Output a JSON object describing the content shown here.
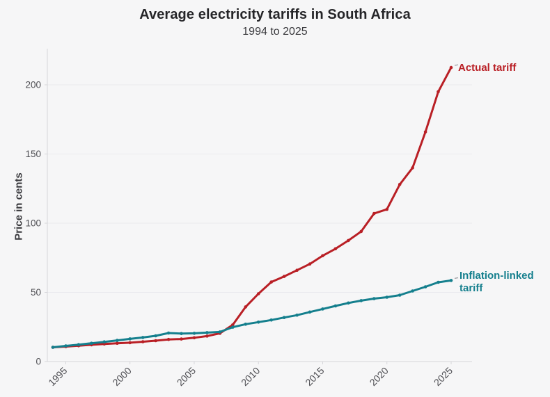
{
  "chart_data": {
    "type": "line",
    "title": "Average electricity tariffs in South Africa",
    "subtitle": "1994 to 2025",
    "ylabel": "Price in cents",
    "xlabel": "",
    "x_ticks": [
      1995,
      2000,
      2005,
      2010,
      2015,
      2020,
      2025
    ],
    "y_ticks": [
      0,
      50,
      100,
      150,
      200
    ],
    "ylim": [
      0,
      215
    ],
    "xlim": [
      1994,
      2025
    ],
    "grid": "horizontal",
    "legend_position": "end-of-line-labels",
    "background_color": "#f6f6f7",
    "grid_color": "#eaeaee",
    "axis_color": "#d6d6da",
    "tick_label_color": "#4e4e53",
    "x": [
      1994,
      1995,
      1996,
      1997,
      1998,
      1999,
      2000,
      2001,
      2002,
      2003,
      2004,
      2005,
      2006,
      2007,
      2008,
      2009,
      2010,
      2011,
      2012,
      2013,
      2014,
      2015,
      2016,
      2017,
      2018,
      2019,
      2020,
      2021,
      2022,
      2023,
      2024,
      2025
    ],
    "series": [
      {
        "name": "Actual tariff",
        "color": "#b91f25",
        "values": [
          10.3,
          10.8,
          11.4,
          12.1,
          12.7,
          13.2,
          13.6,
          14.3,
          15.1,
          16.0,
          16.3,
          17.2,
          18.4,
          20.4,
          26.5,
          39.5,
          49.0,
          57.5,
          61.5,
          66.0,
          70.5,
          76.5,
          81.5,
          87.5,
          94.0,
          107.0,
          110.0,
          128.0,
          140.0,
          166.0,
          195.0,
          212.5
        ]
      },
      {
        "name": "Inflation-linked tariff",
        "color": "#147f8d",
        "values": [
          10.3,
          11.3,
          12.2,
          13.2,
          14.2,
          15.3,
          16.4,
          17.4,
          18.6,
          20.6,
          20.2,
          20.4,
          20.9,
          21.4,
          24.8,
          27.0,
          28.5,
          30.0,
          31.8,
          33.5,
          35.8,
          38.0,
          40.2,
          42.3,
          44.0,
          45.5,
          46.5,
          48.0,
          51.0,
          54.0,
          57.3,
          58.6
        ]
      }
    ]
  }
}
